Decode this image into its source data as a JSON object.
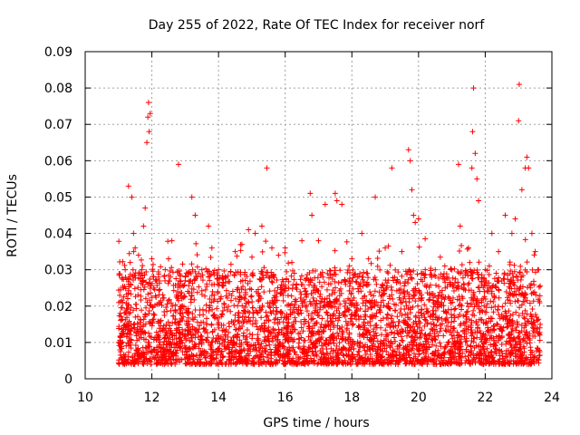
{
  "chart_data": {
    "type": "scatter",
    "title": "Day 255 of 2022, Rate Of TEC Index for receiver norf",
    "xlabel": "GPS time / hours",
    "ylabel": "ROTI / TECUs",
    "xlim": [
      10,
      24
    ],
    "ylim": [
      0,
      0.09
    ],
    "x_ticks": [
      "10",
      "12",
      "14",
      "16",
      "18",
      "20",
      "22",
      "24"
    ],
    "y_ticks": [
      "0",
      "0.01",
      "0.02",
      "0.03",
      "0.04",
      "0.05",
      "0.06",
      "0.07",
      "0.08",
      "0.09"
    ],
    "grid": true,
    "marker": "plus",
    "color": "#ff0000",
    "series": [
      {
        "points": [
          [
            11.0,
            0.01
          ],
          [
            11.05,
            0.018
          ],
          [
            11.1,
            0.012
          ],
          [
            11.15,
            0.025
          ],
          [
            11.2,
            0.03
          ],
          [
            11.25,
            0.015
          ],
          [
            11.3,
            0.053
          ],
          [
            11.35,
            0.032
          ],
          [
            11.4,
            0.05
          ],
          [
            11.45,
            0.04
          ],
          [
            11.5,
            0.036
          ],
          [
            11.6,
            0.034
          ],
          [
            11.7,
            0.03
          ],
          [
            11.75,
            0.042
          ],
          [
            11.8,
            0.047
          ],
          [
            11.85,
            0.065
          ],
          [
            11.88,
            0.072
          ],
          [
            11.9,
            0.076
          ],
          [
            11.92,
            0.068
          ],
          [
            11.95,
            0.073
          ],
          [
            12.0,
            0.033
          ],
          [
            12.2,
            0.028
          ],
          [
            12.4,
            0.03
          ],
          [
            12.5,
            0.033
          ],
          [
            12.6,
            0.038
          ],
          [
            12.8,
            0.059
          ],
          [
            12.9,
            0.022
          ],
          [
            13.0,
            0.027
          ],
          [
            13.2,
            0.05
          ],
          [
            13.3,
            0.045
          ],
          [
            13.5,
            0.03
          ],
          [
            13.7,
            0.042
          ],
          [
            13.8,
            0.036
          ],
          [
            14.0,
            0.03
          ],
          [
            14.2,
            0.028
          ],
          [
            14.5,
            0.035
          ],
          [
            14.7,
            0.037
          ],
          [
            14.9,
            0.041
          ],
          [
            15.1,
            0.04
          ],
          [
            15.3,
            0.042
          ],
          [
            15.45,
            0.058
          ],
          [
            15.6,
            0.036
          ],
          [
            15.8,
            0.034
          ],
          [
            16.0,
            0.036
          ],
          [
            16.2,
            0.032
          ],
          [
            16.5,
            0.038
          ],
          [
            16.75,
            0.051
          ],
          [
            16.8,
            0.045
          ],
          [
            17.0,
            0.038
          ],
          [
            17.2,
            0.048
          ],
          [
            17.5,
            0.051
          ],
          [
            17.55,
            0.049
          ],
          [
            17.7,
            0.048
          ],
          [
            18.0,
            0.033
          ],
          [
            18.3,
            0.04
          ],
          [
            18.5,
            0.033
          ],
          [
            18.7,
            0.05
          ],
          [
            19.0,
            0.036
          ],
          [
            19.2,
            0.058
          ],
          [
            19.5,
            0.035
          ],
          [
            19.7,
            0.063
          ],
          [
            19.75,
            0.06
          ],
          [
            19.8,
            0.052
          ],
          [
            19.85,
            0.045
          ],
          [
            19.9,
            0.043
          ],
          [
            20.0,
            0.044
          ],
          [
            20.2,
            0.03
          ],
          [
            20.5,
            0.03
          ],
          [
            20.8,
            0.025
          ],
          [
            21.0,
            0.03
          ],
          [
            21.2,
            0.059
          ],
          [
            21.25,
            0.042
          ],
          [
            21.5,
            0.036
          ],
          [
            21.6,
            0.058
          ],
          [
            21.62,
            0.068
          ],
          [
            21.65,
            0.08
          ],
          [
            21.7,
            0.062
          ],
          [
            21.75,
            0.055
          ],
          [
            21.8,
            0.049
          ],
          [
            22.0,
            0.03
          ],
          [
            22.2,
            0.04
          ],
          [
            22.4,
            0.035
          ],
          [
            22.6,
            0.045
          ],
          [
            22.8,
            0.04
          ],
          [
            22.9,
            0.044
          ],
          [
            23.0,
            0.071
          ],
          [
            23.02,
            0.081
          ],
          [
            23.1,
            0.052
          ],
          [
            23.2,
            0.058
          ],
          [
            23.25,
            0.061
          ],
          [
            23.3,
            0.058
          ],
          [
            23.4,
            0.04
          ],
          [
            23.5,
            0.035
          ],
          [
            23.6,
            0.03
          ],
          [
            23.65,
            0.015
          ]
        ]
      }
    ]
  }
}
